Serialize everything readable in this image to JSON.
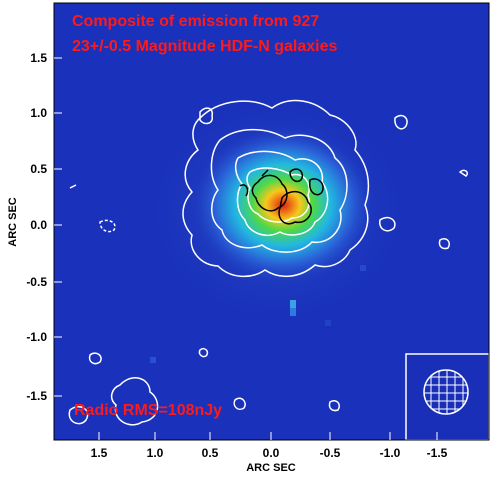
{
  "figure": {
    "title_line1": "Composite of emission from 927",
    "title_line2": "23+/-0.5 Magnitude HDF-N galaxies",
    "rms_label": "Radio RMS=108nJy",
    "x_axis_label": "ARC SEC",
    "y_axis_label": "ARC SEC",
    "x_ticks": [
      "1.5",
      "1.0",
      "0.5",
      "0.0",
      "-0.5",
      "-1.0",
      "-1.5"
    ],
    "y_ticks": [
      "1.5",
      "1.0",
      "0.5",
      "0.0",
      "-0.5",
      "-1.0",
      "-1.5"
    ],
    "colors": {
      "background_blue": "#1a2fb8",
      "title_red": "#ff1a1a",
      "contour_white": "#ffffff",
      "contour_black": "#000000"
    }
  }
}
